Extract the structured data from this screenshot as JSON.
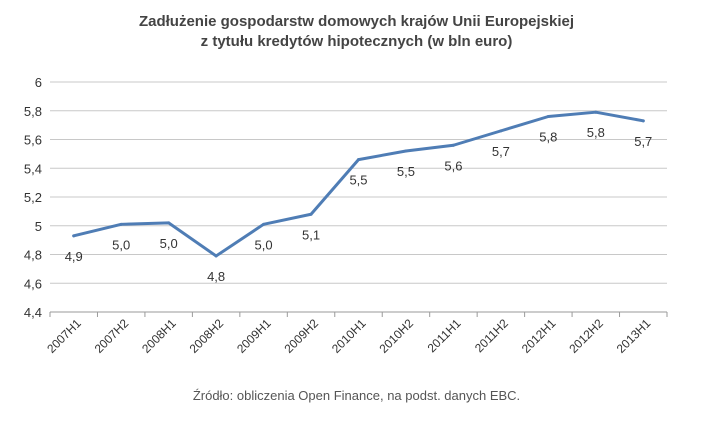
{
  "title_line1": "Zadłużenie gospodarstw domowych krajów Unii Europejskiej",
  "title_line2": "z tytułu kredytów hipotecznych (w bln euro)",
  "source": "Źródło: obliczenia Open Finance, na podst. danych EBC.",
  "chart_data": {
    "type": "line",
    "title": "Zadłużenie gospodarstw domowych krajów Unii Europejskiej z tytułu kredytów hipotecznych (w bln euro)",
    "categories": [
      "2007H1",
      "2007H2",
      "2008H1",
      "2008H2",
      "2009H1",
      "2009H2",
      "2010H1",
      "2010H2",
      "2011H1",
      "2011H2",
      "2012H1",
      "2012H2",
      "2013H1"
    ],
    "series": [
      {
        "values": [
          4.93,
          5.01,
          5.02,
          4.79,
          5.01,
          5.08,
          5.46,
          5.52,
          5.56,
          5.66,
          5.76,
          5.79,
          5.73
        ],
        "color": "#4f7db5"
      }
    ],
    "data_labels": [
      "4,9",
      "5,0",
      "5,0",
      "4,8",
      "5,0",
      "5,1",
      "5,5",
      "5,5",
      "5,6",
      "5,7",
      "5,8",
      "5,8",
      "5,7"
    ],
    "y_ticks": [
      "4,4",
      "4,6",
      "4,8",
      "5",
      "5,2",
      "5,4",
      "5,6",
      "5,8",
      "6"
    ],
    "ylim": [
      4.4,
      6
    ],
    "grid": true,
    "legend": "none"
  }
}
